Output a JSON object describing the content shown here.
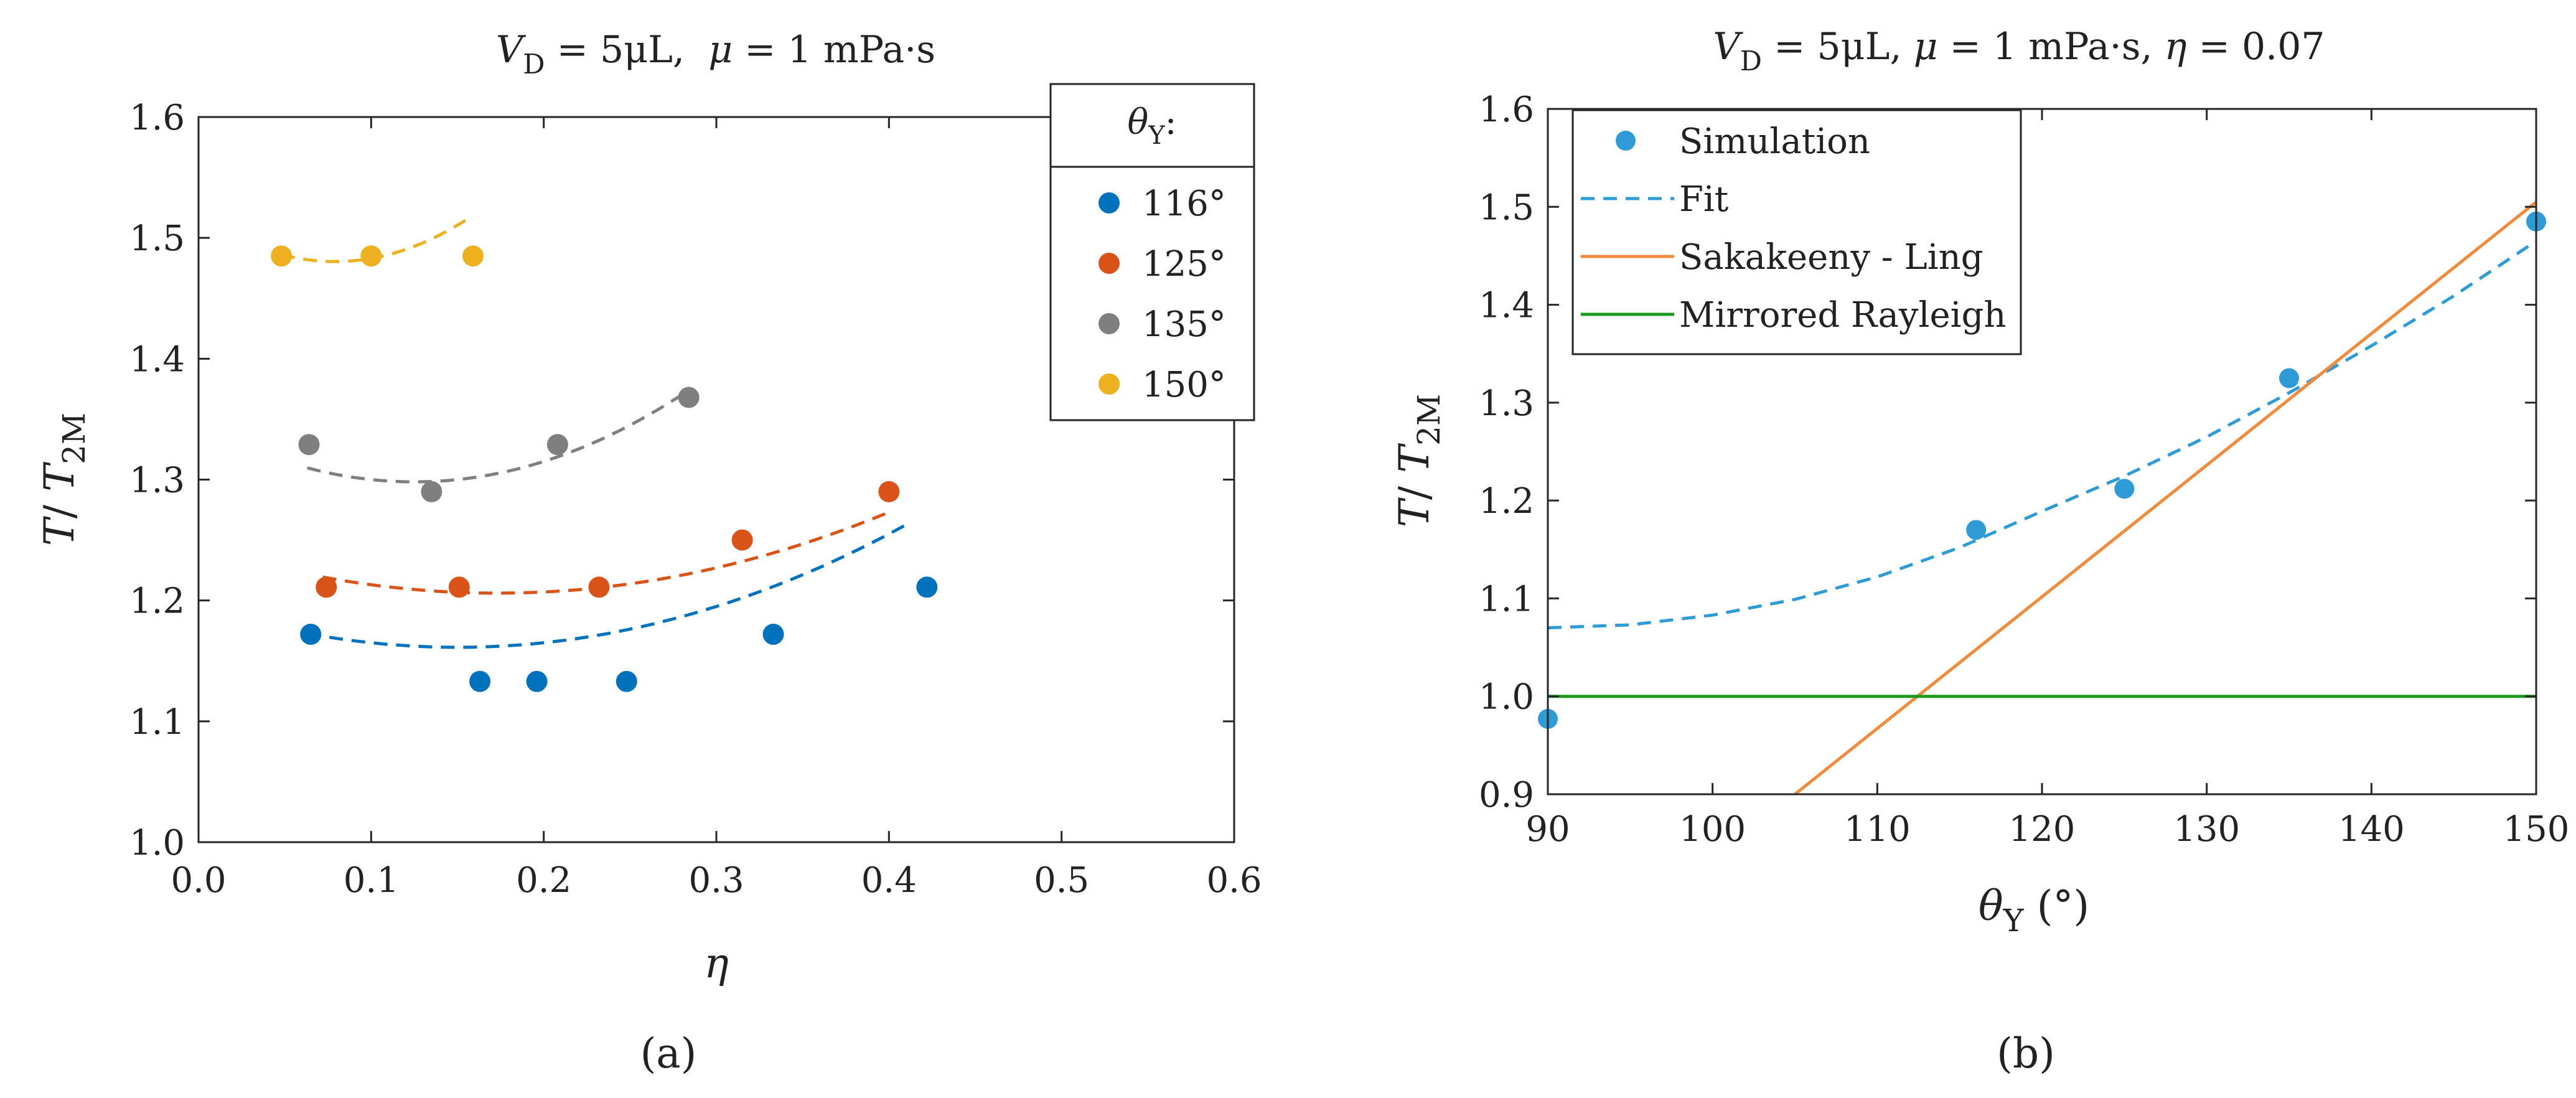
{
  "chart_data": [
    {
      "type": "scatter",
      "panel_label": "(a)",
      "title": "V_D = 5μL, μ = 1 mPa·s",
      "title_parts": {
        "v": "V",
        "d_sub": "D",
        "rest": " = 5μL,  ",
        "mu": "μ",
        "rest2": " = 1 mPa·s"
      },
      "xlabel": "η",
      "ylabel": "T/ T_2M",
      "ylabel_parts": {
        "t": "T",
        "slash": "/ ",
        "t2": "T",
        "sub": "2M"
      },
      "xlim": [
        0.0,
        0.6
      ],
      "ylim": [
        1.0,
        1.6
      ],
      "xticks": [
        "0.0",
        "0.1",
        "0.2",
        "0.3",
        "0.4",
        "0.5",
        "0.6"
      ],
      "yticks": [
        "1.0",
        "1.1",
        "1.2",
        "1.3",
        "1.4",
        "1.5",
        "1.6"
      ],
      "legend_title": {
        "theta": "θ",
        "sub": "Y",
        "colon": ":"
      },
      "legend_placement": "top-right",
      "series": [
        {
          "name": "116°",
          "color": "#0072BD",
          "x": [
            0.065,
            0.163,
            0.196,
            0.248,
            0.333,
            0.422
          ],
          "y": [
            1.172,
            1.133,
            1.133,
            1.133,
            1.172,
            1.211
          ],
          "fit_x": [
            0.063,
            0.413
          ],
          "fit_coef": [
            1.195,
            -0.45,
            1.5
          ]
        },
        {
          "name": "125°",
          "color": "#D95319",
          "x": [
            0.074,
            0.151,
            0.232,
            0.315,
            0.4
          ],
          "y": [
            1.211,
            1.211,
            1.211,
            1.25,
            1.29
          ],
          "fit_x": [
            0.072,
            0.398
          ],
          "fit_coef": [
            1.245,
            -0.45,
            1.3
          ]
        },
        {
          "name": "135°",
          "color": "#7F7F7F",
          "x": [
            0.064,
            0.135,
            0.208,
            0.284
          ],
          "y": [
            1.329,
            1.29,
            1.329,
            1.368
          ],
          "fit_x": [
            0.063,
            0.283
          ],
          "fit_coef": [
            1.345,
            -0.75,
            3.0
          ]
        },
        {
          "name": "150°",
          "color": "#EDB120",
          "x": [
            0.048,
            0.1,
            0.159
          ],
          "y": [
            1.485,
            1.485,
            1.485
          ],
          "fit_x": [
            0.048,
            0.158
          ],
          "fit_coef": [
            1.518,
            -0.95,
            6.0
          ]
        }
      ]
    },
    {
      "type": "line",
      "panel_label": "(b)",
      "title": "V_D = 5μL, μ = 1 mPa·s, η = 0.07",
      "title_parts": {
        "v": "V",
        "d_sub": "D",
        "rest": " = 5μL, ",
        "mu": "μ",
        "rest2": " = 1 mPa·s, ",
        "eta": "η",
        "rest3": " = 0.07"
      },
      "xlabel": "θ_Y (°)",
      "xlabel_parts": {
        "theta": "θ",
        "sub": "Y",
        "unit": " (°)"
      },
      "ylabel": "T/ T_2M",
      "ylabel_parts": {
        "t": "T",
        "slash": "/ ",
        "t2": "T",
        "sub": "2M"
      },
      "xlim": [
        90,
        150
      ],
      "ylim": [
        0.9,
        1.6
      ],
      "xticks": [
        "90",
        "100",
        "110",
        "120",
        "130",
        "140",
        "150"
      ],
      "yticks": [
        "0.9",
        "1.0",
        "1.1",
        "1.2",
        "1.3",
        "1.4",
        "1.5",
        "1.6"
      ],
      "legend_placement": "top-left",
      "series": [
        {
          "name": "Simulation",
          "kind": "scatter",
          "color": "#2E9BD6",
          "x": [
            90,
            116,
            125,
            135,
            150
          ],
          "y": [
            0.977,
            1.17,
            1.212,
            1.325,
            1.485
          ]
        },
        {
          "name": "Fit",
          "kind": "dashed",
          "color": "#2E9BD6",
          "x": [
            90,
            95,
            100,
            105,
            110,
            115,
            120,
            125,
            130,
            135,
            140,
            145,
            150
          ],
          "y": [
            1.07,
            1.073,
            1.083,
            1.099,
            1.122,
            1.152,
            1.189,
            1.225,
            1.265,
            1.31,
            1.358,
            1.409,
            1.465
          ]
        },
        {
          "name": "Sakakeeny - Ling",
          "kind": "line",
          "color": "#F08A3C",
          "x": [
            105,
            150
          ],
          "y": [
            0.9,
            1.505
          ]
        },
        {
          "name": "Mirrored Rayleigh",
          "kind": "line",
          "color": "#1E9A1E",
          "x": [
            90,
            150
          ],
          "y": [
            1.0,
            1.0
          ]
        }
      ]
    }
  ]
}
